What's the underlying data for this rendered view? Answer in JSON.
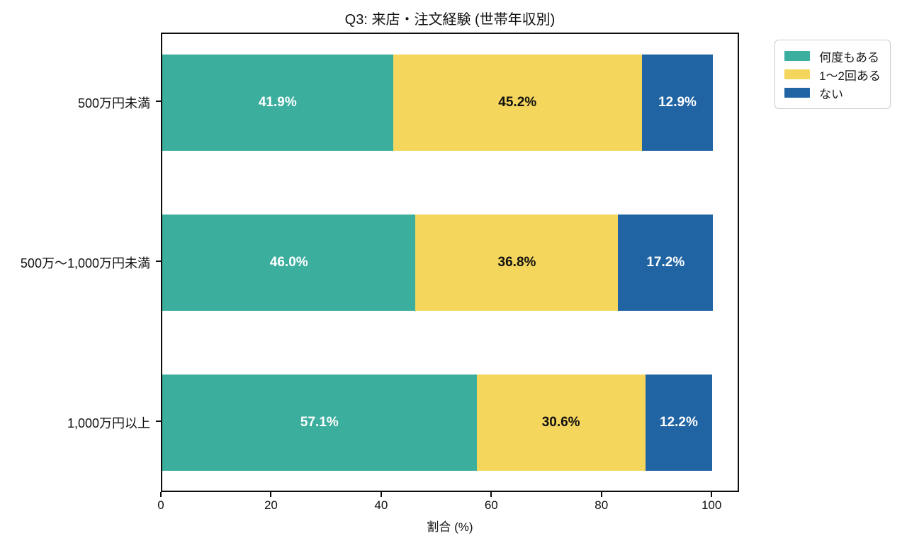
{
  "chart_data": {
    "type": "bar",
    "orientation": "horizontal",
    "stacked": true,
    "title": "Q3: 来店・注文経験 (世帯年収別)",
    "xlabel": "割合 (%)",
    "categories": [
      "500万円未満",
      "500万〜1,000万円未満",
      "1,000万円以上"
    ],
    "series": [
      {
        "name": "何度もある",
        "color": "#3cae9e",
        "label_color": "#ffffff",
        "values": [
          41.9,
          46.0,
          57.1
        ]
      },
      {
        "name": "1〜2回ある",
        "color": "#f5d65c",
        "label_color": "#111111",
        "values": [
          45.2,
          36.8,
          30.6
        ]
      },
      {
        "name": "ない",
        "color": "#2064a4",
        "label_color": "#ffffff",
        "values": [
          12.9,
          17.2,
          12.2
        ]
      }
    ],
    "value_suffix": "%",
    "xlim": [
      0,
      105
    ],
    "xticks": [
      0,
      20,
      40,
      60,
      80,
      100
    ],
    "grid": false,
    "legend_position": "outside-upper-right"
  }
}
